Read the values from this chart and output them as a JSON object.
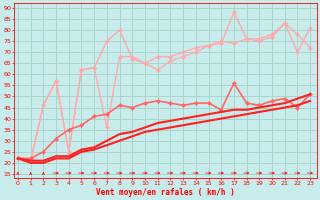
{
  "background_color": "#c8ecec",
  "grid_color": "#aad4cc",
  "text_color": "#ff0000",
  "xlabel": "Vent moyen/en rafales ( km/h )",
  "x_ticks": [
    0,
    1,
    2,
    3,
    4,
    5,
    6,
    7,
    8,
    9,
    10,
    11,
    12,
    13,
    14,
    15,
    16,
    17,
    18,
    19,
    20,
    21,
    22,
    23
  ],
  "y_ticks": [
    15,
    20,
    25,
    30,
    35,
    40,
    45,
    50,
    55,
    60,
    65,
    70,
    75,
    80,
    85,
    90
  ],
  "ylim": [
    13,
    92
  ],
  "xlim": [
    -0.3,
    23.5
  ],
  "line_bright1_x": [
    0,
    1,
    2,
    3,
    4,
    5,
    6,
    7,
    8,
    9,
    10,
    11,
    12,
    13,
    14,
    15,
    16,
    17,
    18,
    19,
    20,
    21,
    22,
    23
  ],
  "line_bright1_y": [
    22,
    21,
    46,
    57,
    25,
    62,
    63,
    75,
    80,
    67,
    65,
    62,
    66,
    68,
    70,
    73,
    74,
    88,
    76,
    76,
    78,
    83,
    70,
    81
  ],
  "line_bright2_x": [
    0,
    1,
    2,
    3,
    4,
    5,
    6,
    7,
    8,
    9,
    10,
    11,
    12,
    13,
    14,
    15,
    16,
    17,
    18,
    19,
    20,
    21,
    22,
    23
  ],
  "line_bright2_y": [
    22,
    21,
    46,
    57,
    25,
    62,
    63,
    36,
    68,
    68,
    65,
    68,
    68,
    70,
    72,
    73,
    75,
    74,
    76,
    75,
    77,
    83,
    78,
    72
  ],
  "line_med1_x": [
    0,
    1,
    2,
    3,
    4,
    5,
    6,
    7,
    8,
    9,
    10,
    11,
    12,
    13,
    14,
    15,
    16,
    17,
    18,
    19,
    20,
    21,
    22,
    23
  ],
  "line_med1_y": [
    22,
    22,
    25,
    31,
    35,
    37,
    41,
    42,
    46,
    45,
    47,
    48,
    47,
    46,
    47,
    47,
    44,
    56,
    47,
    46,
    48,
    49,
    45,
    51
  ],
  "line_trend1_x": [
    0,
    1,
    2,
    3,
    4,
    5,
    6,
    7,
    8,
    9,
    10,
    11,
    12,
    13,
    14,
    15,
    16,
    17,
    18,
    19,
    20,
    21,
    22,
    23
  ],
  "line_trend1_y": [
    22,
    21,
    21,
    23,
    23,
    26,
    27,
    30,
    33,
    34,
    36,
    38,
    39,
    40,
    41,
    42,
    43,
    44,
    44,
    45,
    46,
    47,
    49,
    51
  ],
  "line_trend2_x": [
    0,
    1,
    2,
    3,
    4,
    5,
    6,
    7,
    8,
    9,
    10,
    11,
    12,
    13,
    14,
    15,
    16,
    17,
    18,
    19,
    20,
    21,
    22,
    23
  ],
  "line_trend2_y": [
    22,
    20,
    20,
    22,
    22,
    25,
    26,
    28,
    30,
    32,
    34,
    35,
    36,
    37,
    38,
    39,
    40,
    41,
    42,
    43,
    44,
    45,
    46,
    48
  ],
  "color_bright": "#ffaaaa",
  "color_med": "#ff6666",
  "color_dark": "#ff2020",
  "lw_bright": 1.0,
  "lw_med": 1.2,
  "lw_dark": 1.5,
  "ms": 2.5
}
